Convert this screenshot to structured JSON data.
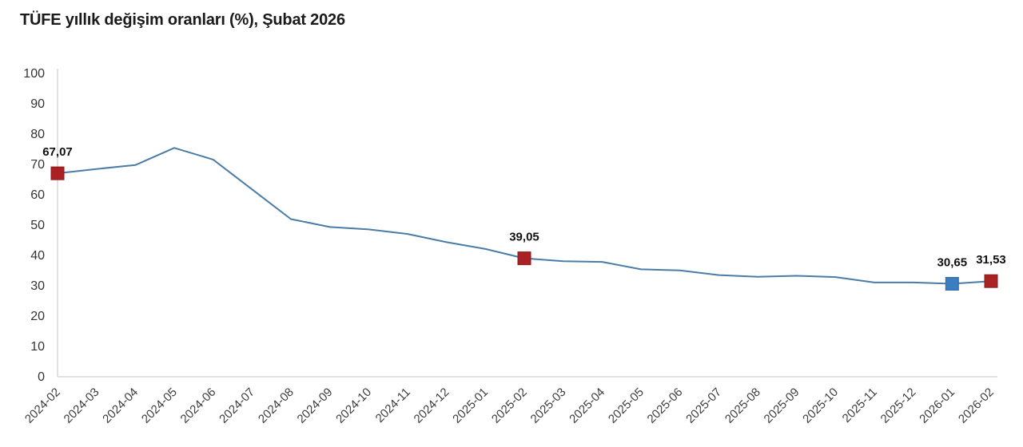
{
  "header": {
    "title": "TÜFE yıllık değişim oranları (%), Şubat 2026"
  },
  "colors": {
    "line": "#4a7ca8",
    "marker_red": "#aa2123",
    "marker_red_border": "#8c1a1c",
    "marker_blue": "#3c7cc0",
    "marker_blue_border": "#2f6aa8",
    "axis": "#d9d9d9",
    "tick_text": "#333333",
    "point_label_text": "#111111"
  },
  "chart_data": {
    "type": "line",
    "title": "TÜFE yıllık değişim oranları (%), Şubat 2026",
    "xlabel": "",
    "ylabel": "",
    "ylim": [
      0,
      100
    ],
    "yticks": [
      0,
      10,
      20,
      30,
      40,
      50,
      60,
      70,
      80,
      90,
      100
    ],
    "grid": false,
    "legend": "none",
    "categories": [
      "2024-02",
      "2024-03",
      "2024-04",
      "2024-05",
      "2024-06",
      "2024-07",
      "2024-08",
      "2024-09",
      "2024-10",
      "2024-11",
      "2024-12",
      "2025-01",
      "2025-02",
      "2025-03",
      "2025-04",
      "2025-05",
      "2025-06",
      "2025-07",
      "2025-08",
      "2025-09",
      "2025-10",
      "2025-11",
      "2025-12",
      "2026-01",
      "2026-02"
    ],
    "values": [
      67.07,
      68.5,
      69.8,
      75.45,
      71.6,
      61.78,
      51.97,
      49.38,
      48.58,
      47.09,
      44.38,
      42.12,
      39.05,
      38.1,
      37.86,
      35.41,
      35.05,
      33.52,
      32.95,
      33.29,
      32.87,
      31.07,
      31.08,
      30.65,
      31.53
    ],
    "labeled_points": [
      {
        "category": "2024-02",
        "index": 0,
        "label": "67,07",
        "marker": "red"
      },
      {
        "category": "2025-02",
        "index": 12,
        "label": "39,05",
        "marker": "red"
      },
      {
        "category": "2026-01",
        "index": 23,
        "label": "30,65",
        "marker": "blue"
      },
      {
        "category": "2026-02",
        "index": 24,
        "label": "31,53",
        "marker": "red"
      }
    ]
  }
}
